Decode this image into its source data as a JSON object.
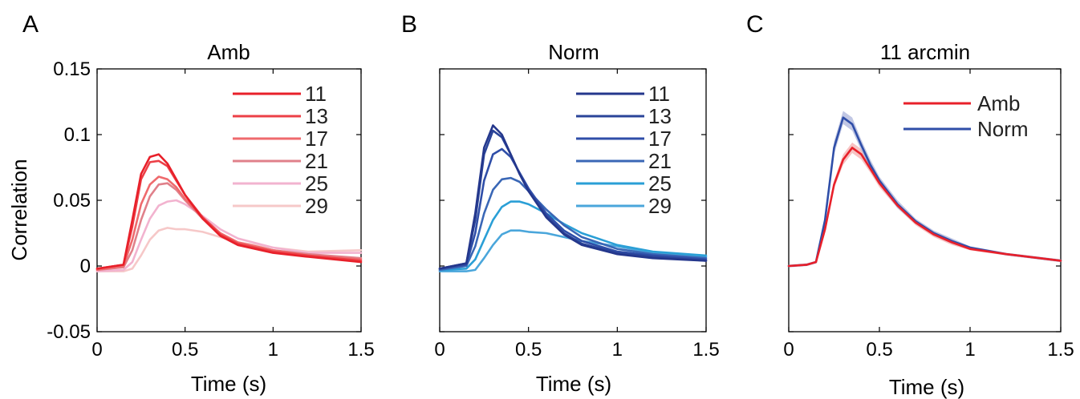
{
  "figure": {
    "panels": [
      "A",
      "B",
      "C"
    ]
  },
  "chart_data": [
    {
      "panel": "A",
      "type": "line",
      "title": "Amb",
      "xlabel": "Time (s)",
      "ylabel": "Correlation",
      "xlim": [
        0,
        1.5
      ],
      "ylim": [
        -0.05,
        0.15
      ],
      "xticks": [
        0,
        0.5,
        1,
        1.5
      ],
      "xtick_labels": [
        "0",
        "0.5",
        "1",
        "1.5"
      ],
      "yticks": [
        -0.05,
        0,
        0.05,
        0.1,
        0.15
      ],
      "ytick_labels": [
        "-0.05",
        "0",
        "0.05",
        "0.1",
        "0.15"
      ],
      "legend_position": "top-right",
      "series": [
        {
          "name": "11",
          "color": "#e8202a",
          "x": [
            0,
            0.15,
            0.2,
            0.25,
            0.3,
            0.35,
            0.4,
            0.45,
            0.5,
            0.6,
            0.7,
            0.8,
            1.0,
            1.2,
            1.5
          ],
          "y": [
            -0.002,
            0.001,
            0.035,
            0.07,
            0.083,
            0.085,
            0.078,
            0.066,
            0.054,
            0.036,
            0.023,
            0.016,
            0.01,
            0.007,
            0.003
          ]
        },
        {
          "name": "13",
          "color": "#ec4047",
          "x": [
            0,
            0.15,
            0.2,
            0.25,
            0.3,
            0.35,
            0.4,
            0.45,
            0.5,
            0.6,
            0.7,
            0.8,
            1.0,
            1.2,
            1.5
          ],
          "y": [
            -0.002,
            0.001,
            0.03,
            0.066,
            0.079,
            0.08,
            0.076,
            0.065,
            0.054,
            0.037,
            0.024,
            0.017,
            0.011,
            0.008,
            0.004
          ]
        },
        {
          "name": "17",
          "color": "#ef6a6d",
          "x": [
            0,
            0.15,
            0.2,
            0.25,
            0.3,
            0.35,
            0.4,
            0.45,
            0.5,
            0.6,
            0.7,
            0.8,
            1.0,
            1.2,
            1.5
          ],
          "y": [
            -0.003,
            0.0,
            0.02,
            0.047,
            0.062,
            0.068,
            0.066,
            0.06,
            0.051,
            0.037,
            0.025,
            0.018,
            0.012,
            0.008,
            0.005
          ]
        },
        {
          "name": "21",
          "color": "#e0808a",
          "x": [
            0,
            0.15,
            0.2,
            0.25,
            0.3,
            0.35,
            0.4,
            0.45,
            0.5,
            0.6,
            0.7,
            0.8,
            1.0,
            1.2,
            1.5
          ],
          "y": [
            -0.003,
            -0.001,
            0.012,
            0.035,
            0.053,
            0.062,
            0.063,
            0.058,
            0.05,
            0.036,
            0.025,
            0.018,
            0.012,
            0.009,
            0.006
          ]
        },
        {
          "name": "25",
          "color": "#f2b3cf",
          "x": [
            0,
            0.15,
            0.2,
            0.25,
            0.3,
            0.35,
            0.4,
            0.45,
            0.5,
            0.6,
            0.7,
            0.8,
            1.0,
            1.2,
            1.5
          ],
          "y": [
            -0.004,
            -0.003,
            0.003,
            0.02,
            0.036,
            0.046,
            0.049,
            0.05,
            0.047,
            0.038,
            0.028,
            0.021,
            0.014,
            0.01,
            0.01
          ]
        },
        {
          "name": "29",
          "color": "#f6c8c8",
          "x": [
            0,
            0.15,
            0.2,
            0.25,
            0.3,
            0.35,
            0.4,
            0.45,
            0.5,
            0.6,
            0.7,
            0.8,
            1.0,
            1.2,
            1.5
          ],
          "y": [
            -0.004,
            -0.004,
            -0.002,
            0.008,
            0.02,
            0.027,
            0.029,
            0.028,
            0.028,
            0.026,
            0.022,
            0.018,
            0.014,
            0.011,
            0.012
          ]
        }
      ]
    },
    {
      "panel": "B",
      "type": "line",
      "title": "Norm",
      "xlabel": "Time (s)",
      "ylabel": "",
      "xlim": [
        0,
        1.5
      ],
      "ylim": [
        -0.05,
        0.15
      ],
      "xticks": [
        0,
        0.5,
        1,
        1.5
      ],
      "xtick_labels": [
        "0",
        "0.5",
        "1",
        "1.5"
      ],
      "yticks": [],
      "ytick_labels": [],
      "legend_position": "top-right",
      "series": [
        {
          "name": "11",
          "color": "#24378c",
          "x": [
            0,
            0.15,
            0.2,
            0.25,
            0.3,
            0.35,
            0.4,
            0.45,
            0.5,
            0.6,
            0.7,
            0.8,
            1.0,
            1.2,
            1.5
          ],
          "y": [
            -0.002,
            0.002,
            0.04,
            0.09,
            0.107,
            0.1,
            0.085,
            0.07,
            0.057,
            0.037,
            0.024,
            0.016,
            0.009,
            0.006,
            0.004
          ]
        },
        {
          "name": "13",
          "color": "#2a4499",
          "x": [
            0,
            0.15,
            0.2,
            0.25,
            0.3,
            0.35,
            0.4,
            0.45,
            0.5,
            0.6,
            0.7,
            0.8,
            1.0,
            1.2,
            1.5
          ],
          "y": [
            -0.002,
            0.002,
            0.035,
            0.085,
            0.103,
            0.098,
            0.085,
            0.07,
            0.057,
            0.038,
            0.025,
            0.017,
            0.01,
            0.007,
            0.004
          ]
        },
        {
          "name": "17",
          "color": "#2f4ea8",
          "x": [
            0,
            0.15,
            0.2,
            0.25,
            0.3,
            0.35,
            0.4,
            0.45,
            0.5,
            0.6,
            0.7,
            0.8,
            1.0,
            1.2,
            1.5
          ],
          "y": [
            -0.002,
            0.001,
            0.025,
            0.065,
            0.085,
            0.089,
            0.083,
            0.071,
            0.059,
            0.04,
            0.027,
            0.019,
            0.011,
            0.008,
            0.005
          ]
        },
        {
          "name": "21",
          "color": "#3a67b6",
          "x": [
            0,
            0.15,
            0.2,
            0.25,
            0.3,
            0.35,
            0.4,
            0.45,
            0.5,
            0.6,
            0.7,
            0.8,
            1.0,
            1.2,
            1.5
          ],
          "y": [
            -0.003,
            0.0,
            0.015,
            0.04,
            0.058,
            0.066,
            0.067,
            0.064,
            0.057,
            0.043,
            0.031,
            0.022,
            0.013,
            0.009,
            0.006
          ]
        },
        {
          "name": "25",
          "color": "#2a9fd6",
          "x": [
            0,
            0.15,
            0.2,
            0.25,
            0.3,
            0.35,
            0.4,
            0.45,
            0.5,
            0.6,
            0.7,
            0.8,
            1.0,
            1.2,
            1.5
          ],
          "y": [
            -0.003,
            -0.002,
            0.005,
            0.02,
            0.035,
            0.045,
            0.049,
            0.049,
            0.047,
            0.04,
            0.032,
            0.025,
            0.016,
            0.011,
            0.008
          ]
        },
        {
          "name": "29",
          "color": "#4aa6db",
          "x": [
            0,
            0.15,
            0.2,
            0.25,
            0.3,
            0.35,
            0.4,
            0.45,
            0.5,
            0.6,
            0.7,
            0.8,
            1.0,
            1.2,
            1.5
          ],
          "y": [
            -0.004,
            -0.004,
            -0.003,
            0.006,
            0.016,
            0.024,
            0.027,
            0.027,
            0.026,
            0.025,
            0.022,
            0.019,
            0.015,
            0.01,
            0.007
          ]
        }
      ]
    },
    {
      "panel": "C",
      "type": "line",
      "title": "11 arcmin",
      "xlabel": "Time (s)",
      "ylabel": "",
      "xlim": [
        0,
        1.5
      ],
      "ylim": [
        -0.05,
        0.15
      ],
      "xticks": [
        0,
        0.5,
        1,
        1.5
      ],
      "xtick_labels": [
        "0",
        "0.5",
        "1",
        "1.5"
      ],
      "yticks": [],
      "ytick_labels": [],
      "legend_position": "top-right",
      "series": [
        {
          "name": "Amb",
          "color": "#e8202a",
          "band_color": "#f3a9a9",
          "x": [
            0,
            0.1,
            0.15,
            0.2,
            0.25,
            0.3,
            0.35,
            0.4,
            0.45,
            0.5,
            0.6,
            0.7,
            0.8,
            0.9,
            1.0,
            1.2,
            1.5
          ],
          "y": [
            0,
            0.001,
            0.003,
            0.028,
            0.062,
            0.081,
            0.09,
            0.085,
            0.074,
            0.063,
            0.046,
            0.033,
            0.024,
            0.018,
            0.013,
            0.009,
            0.004
          ],
          "err": [
            0.001,
            0.001,
            0.001,
            0.002,
            0.003,
            0.004,
            0.004,
            0.004,
            0.003,
            0.003,
            0.002,
            0.002,
            0.002,
            0.002,
            0.001,
            0.001,
            0.001
          ]
        },
        {
          "name": "Norm",
          "color": "#2f4ea8",
          "band_color": "#a7afd9",
          "x": [
            0,
            0.1,
            0.15,
            0.2,
            0.25,
            0.3,
            0.35,
            0.4,
            0.45,
            0.5,
            0.6,
            0.7,
            0.8,
            0.9,
            1.0,
            1.2,
            1.5
          ],
          "y": [
            0,
            0.001,
            0.003,
            0.035,
            0.09,
            0.113,
            0.108,
            0.092,
            0.077,
            0.065,
            0.047,
            0.034,
            0.025,
            0.019,
            0.014,
            0.009,
            0.004
          ],
          "err": [
            0.001,
            0.001,
            0.001,
            0.003,
            0.005,
            0.005,
            0.005,
            0.004,
            0.004,
            0.003,
            0.003,
            0.002,
            0.002,
            0.002,
            0.001,
            0.001,
            0.001
          ]
        }
      ]
    }
  ]
}
